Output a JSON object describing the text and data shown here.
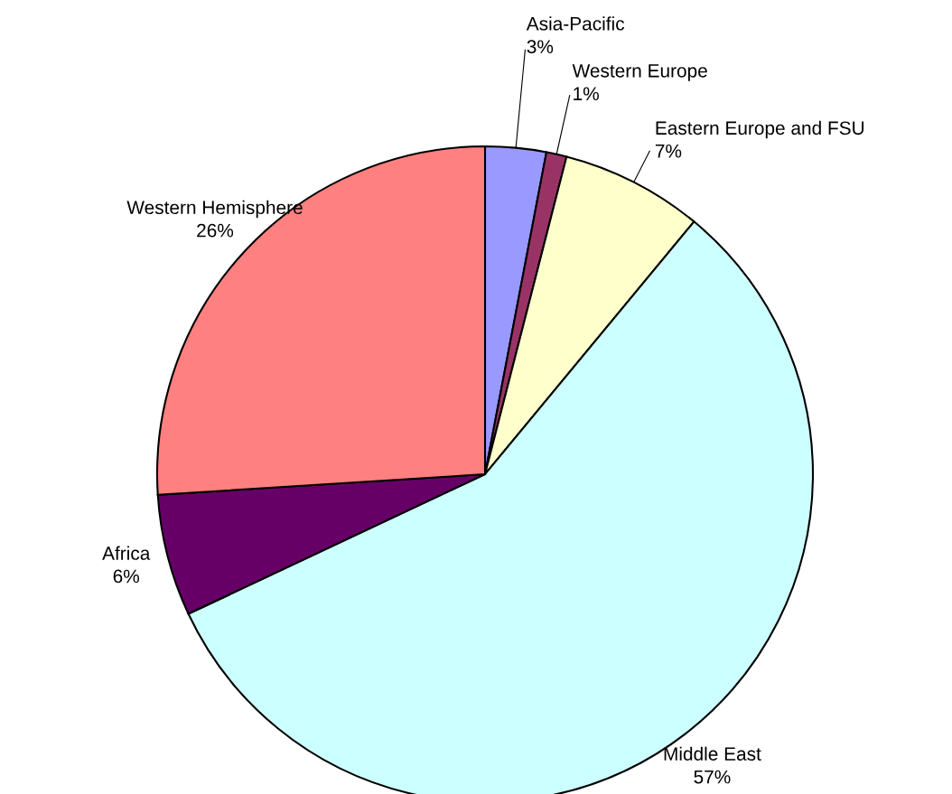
{
  "chart_data": {
    "type": "pie",
    "categories": [
      "Asia-Pacific",
      "Western Europe",
      "Eastern Europe and FSU",
      "Middle East",
      "Africa",
      "Western Hemisphere"
    ],
    "values": [
      3,
      1,
      7,
      57,
      6,
      26
    ],
    "value_labels": [
      "3%",
      "1%",
      "7%",
      "57%",
      "6%",
      "26%"
    ],
    "colors": [
      "#9999ff",
      "#993366",
      "#ffffcc",
      "#ccffff",
      "#660066",
      "#ff8080"
    ]
  }
}
